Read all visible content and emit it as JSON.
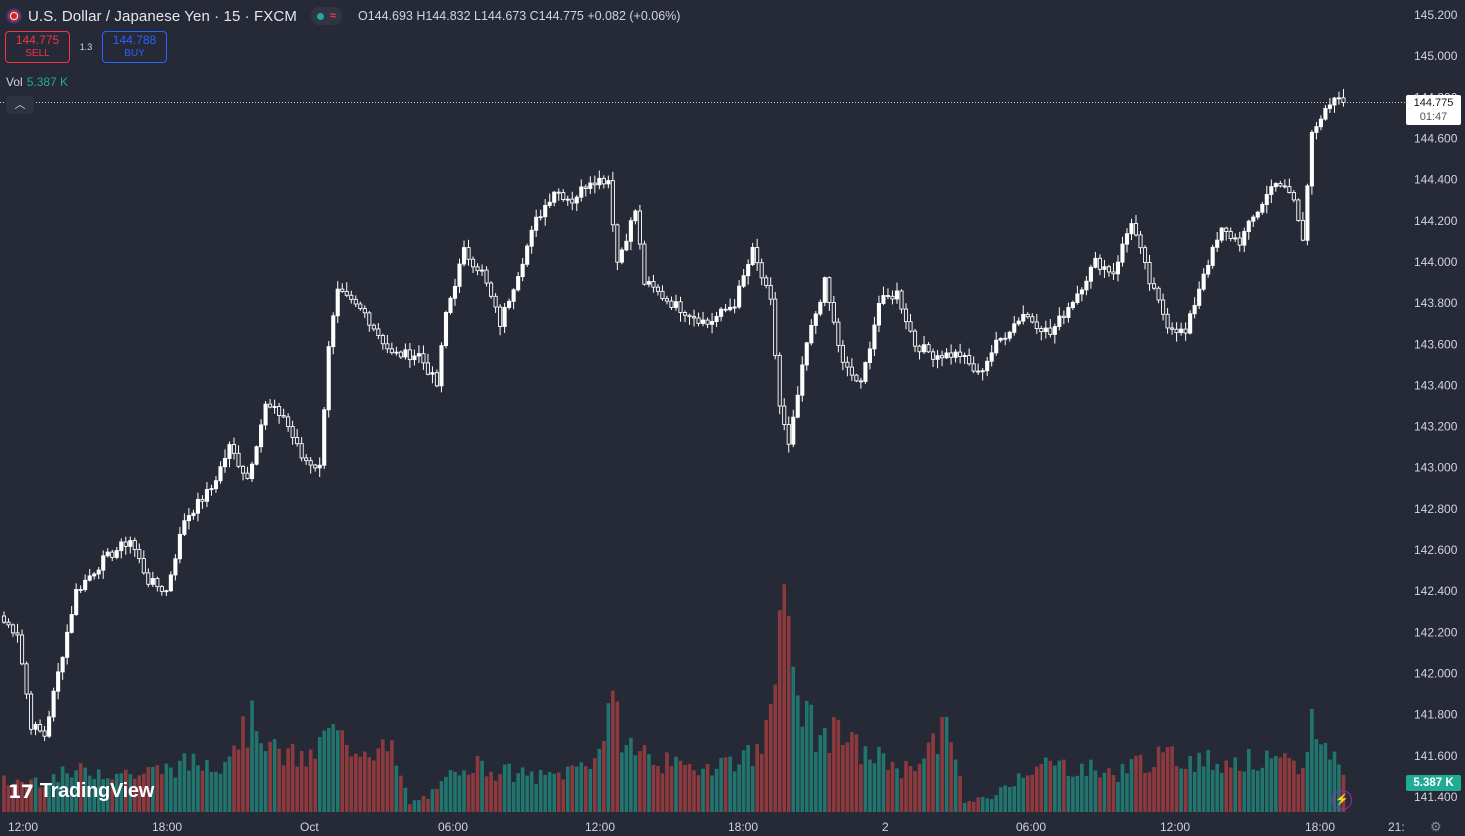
{
  "header": {
    "symbol": "U.S. Dollar / Japanese Yen · 15 · FXCM",
    "ohlc": "O144.693  H144.832  L144.673  C144.775  +0.082 (+0.06%)",
    "status_icon": "market-open-dot"
  },
  "trade": {
    "sell_price": "144.775",
    "sell_label": "SELL",
    "spread": "1.3",
    "buy_price": "144.788",
    "buy_label": "BUY"
  },
  "volume_legend": {
    "label": "Vol",
    "value": "5.387 K"
  },
  "last_price": {
    "price": "144.775",
    "countdown": "01:47"
  },
  "volume_tag": "5.387 K",
  "branding": {
    "logo_text": "TradingView",
    "logo_mark": "17"
  },
  "colors": {
    "background": "#262936",
    "up": "#22ab94",
    "down": "#f23645",
    "candle": "#ffffff",
    "vol_up": "#22756e",
    "vol_down": "#8d3a3e"
  },
  "chart_data": {
    "type": "candlestick",
    "y_axis_ticks": [
      "145.200",
      "145.000",
      "144.800",
      "144.600",
      "144.400",
      "144.200",
      "144.000",
      "143.800",
      "143.600",
      "143.400",
      "143.200",
      "143.000",
      "142.800",
      "142.600",
      "142.400",
      "142.200",
      "142.000",
      "141.800",
      "141.600",
      "141.400"
    ],
    "x_axis_ticks": [
      "12:00",
      "18:00",
      "Oct",
      "06:00",
      "12:00",
      "18:00",
      "2",
      "06:00",
      "12:00",
      "18:00",
      "21:"
    ],
    "ylim": [
      141.38,
      145.25
    ],
    "keypoints": [
      [
        0,
        142.25
      ],
      [
        3,
        142.2
      ],
      [
        6,
        141.75
      ],
      [
        9,
        141.7
      ],
      [
        12,
        142.0
      ],
      [
        16,
        142.4
      ],
      [
        22,
        142.55
      ],
      [
        28,
        142.65
      ],
      [
        32,
        142.45
      ],
      [
        36,
        142.4
      ],
      [
        40,
        142.75
      ],
      [
        46,
        142.9
      ],
      [
        50,
        143.1
      ],
      [
        54,
        142.95
      ],
      [
        58,
        143.3
      ],
      [
        62,
        143.25
      ],
      [
        66,
        143.05
      ],
      [
        70,
        143.0
      ],
      [
        72,
        143.6
      ],
      [
        74,
        143.85
      ],
      [
        80,
        143.75
      ],
      [
        86,
        143.55
      ],
      [
        92,
        143.55
      ],
      [
        96,
        143.4
      ],
      [
        98,
        143.75
      ],
      [
        102,
        144.05
      ],
      [
        106,
        143.95
      ],
      [
        110,
        143.7
      ],
      [
        114,
        143.95
      ],
      [
        118,
        144.2
      ],
      [
        122,
        144.35
      ],
      [
        126,
        144.3
      ],
      [
        130,
        144.4
      ],
      [
        134,
        144.4
      ],
      [
        136,
        144.0
      ],
      [
        140,
        144.25
      ],
      [
        142,
        143.9
      ],
      [
        148,
        143.8
      ],
      [
        156,
        143.7
      ],
      [
        162,
        143.8
      ],
      [
        166,
        144.05
      ],
      [
        170,
        143.8
      ],
      [
        172,
        143.3
      ],
      [
        174,
        143.1
      ],
      [
        178,
        143.6
      ],
      [
        182,
        143.9
      ],
      [
        186,
        143.5
      ],
      [
        190,
        143.4
      ],
      [
        194,
        143.8
      ],
      [
        198,
        143.85
      ],
      [
        202,
        143.6
      ],
      [
        206,
        143.55
      ],
      [
        212,
        143.55
      ],
      [
        216,
        143.45
      ],
      [
        220,
        143.6
      ],
      [
        226,
        143.75
      ],
      [
        232,
        143.65
      ],
      [
        238,
        143.85
      ],
      [
        242,
        144.0
      ],
      [
        246,
        143.95
      ],
      [
        250,
        144.2
      ],
      [
        254,
        143.9
      ],
      [
        258,
        143.7
      ],
      [
        262,
        143.65
      ],
      [
        266,
        143.95
      ],
      [
        270,
        144.15
      ],
      [
        274,
        144.1
      ],
      [
        278,
        144.25
      ],
      [
        282,
        144.4
      ],
      [
        286,
        144.3
      ],
      [
        288,
        144.1
      ],
      [
        290,
        144.65
      ],
      [
        294,
        144.75
      ],
      [
        296,
        144.8
      ],
      [
        297,
        144.78
      ]
    ],
    "volumes": [
      [
        0,
        0.18
      ],
      [
        5,
        0.18
      ],
      [
        10,
        0.2
      ],
      [
        20,
        0.25
      ],
      [
        30,
        0.22
      ],
      [
        40,
        0.28
      ],
      [
        48,
        0.3
      ],
      [
        52,
        0.45
      ],
      [
        56,
        0.55
      ],
      [
        60,
        0.35
      ],
      [
        68,
        0.3
      ],
      [
        72,
        0.48
      ],
      [
        76,
        0.4
      ],
      [
        82,
        0.38
      ],
      [
        86,
        0.35
      ],
      [
        90,
        0.05
      ],
      [
        96,
        0.12
      ],
      [
        102,
        0.3
      ],
      [
        108,
        0.25
      ],
      [
        114,
        0.22
      ],
      [
        120,
        0.2
      ],
      [
        126,
        0.25
      ],
      [
        132,
        0.35
      ],
      [
        134,
        0.65
      ],
      [
        138,
        0.4
      ],
      [
        144,
        0.32
      ],
      [
        150,
        0.25
      ],
      [
        160,
        0.3
      ],
      [
        168,
        0.35
      ],
      [
        172,
        1.2
      ],
      [
        174,
        1.0
      ],
      [
        176,
        0.7
      ],
      [
        180,
        0.45
      ],
      [
        186,
        0.45
      ],
      [
        190,
        0.35
      ],
      [
        196,
        0.3
      ],
      [
        200,
        0.25
      ],
      [
        206,
        0.4
      ],
      [
        210,
        0.5
      ],
      [
        213,
        0.05
      ],
      [
        220,
        0.1
      ],
      [
        226,
        0.25
      ],
      [
        232,
        0.28
      ],
      [
        240,
        0.26
      ],
      [
        246,
        0.22
      ],
      [
        252,
        0.3
      ],
      [
        260,
        0.32
      ],
      [
        268,
        0.3
      ],
      [
        276,
        0.3
      ],
      [
        284,
        0.28
      ],
      [
        288,
        0.25
      ],
      [
        290,
        0.55
      ],
      [
        292,
        0.4
      ],
      [
        296,
        0.3
      ],
      [
        297,
        0.2
      ]
    ]
  }
}
